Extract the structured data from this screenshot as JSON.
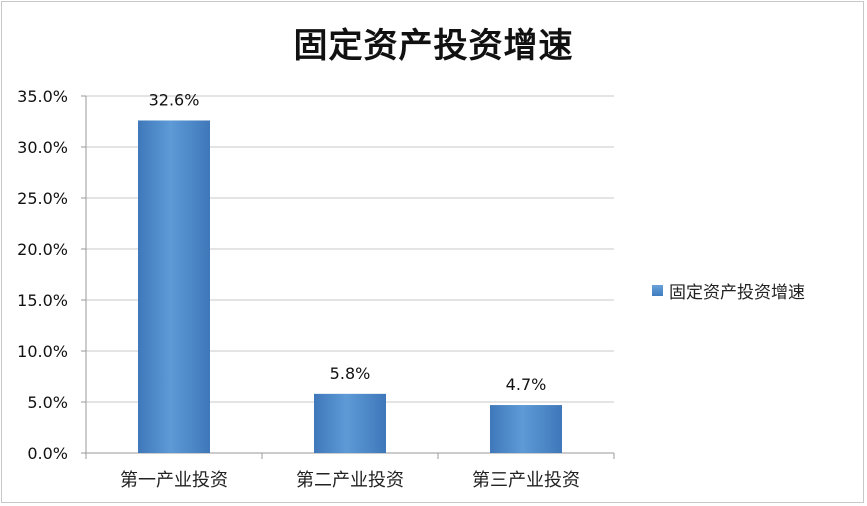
{
  "chart_data": {
    "type": "bar",
    "title": "固定资产投资增速",
    "categories": [
      "第一产业投资",
      "第二产业投资",
      "第三产业投资"
    ],
    "series": [
      {
        "name": "固定资产投资增速",
        "values": [
          32.6,
          5.8,
          4.7
        ]
      }
    ],
    "data_labels": [
      "32.6%",
      "5.8%",
      "4.7%"
    ],
    "ylim": [
      0,
      35
    ],
    "y_ticks": [
      "0.0%",
      "5.0%",
      "10.0%",
      "15.0%",
      "20.0%",
      "25.0%",
      "30.0%",
      "35.0%"
    ],
    "y_tick_values": [
      0,
      5,
      10,
      15,
      20,
      25,
      30,
      35
    ],
    "grid": true,
    "legend_position": "right",
    "bar_color": "#4f8bcc"
  }
}
